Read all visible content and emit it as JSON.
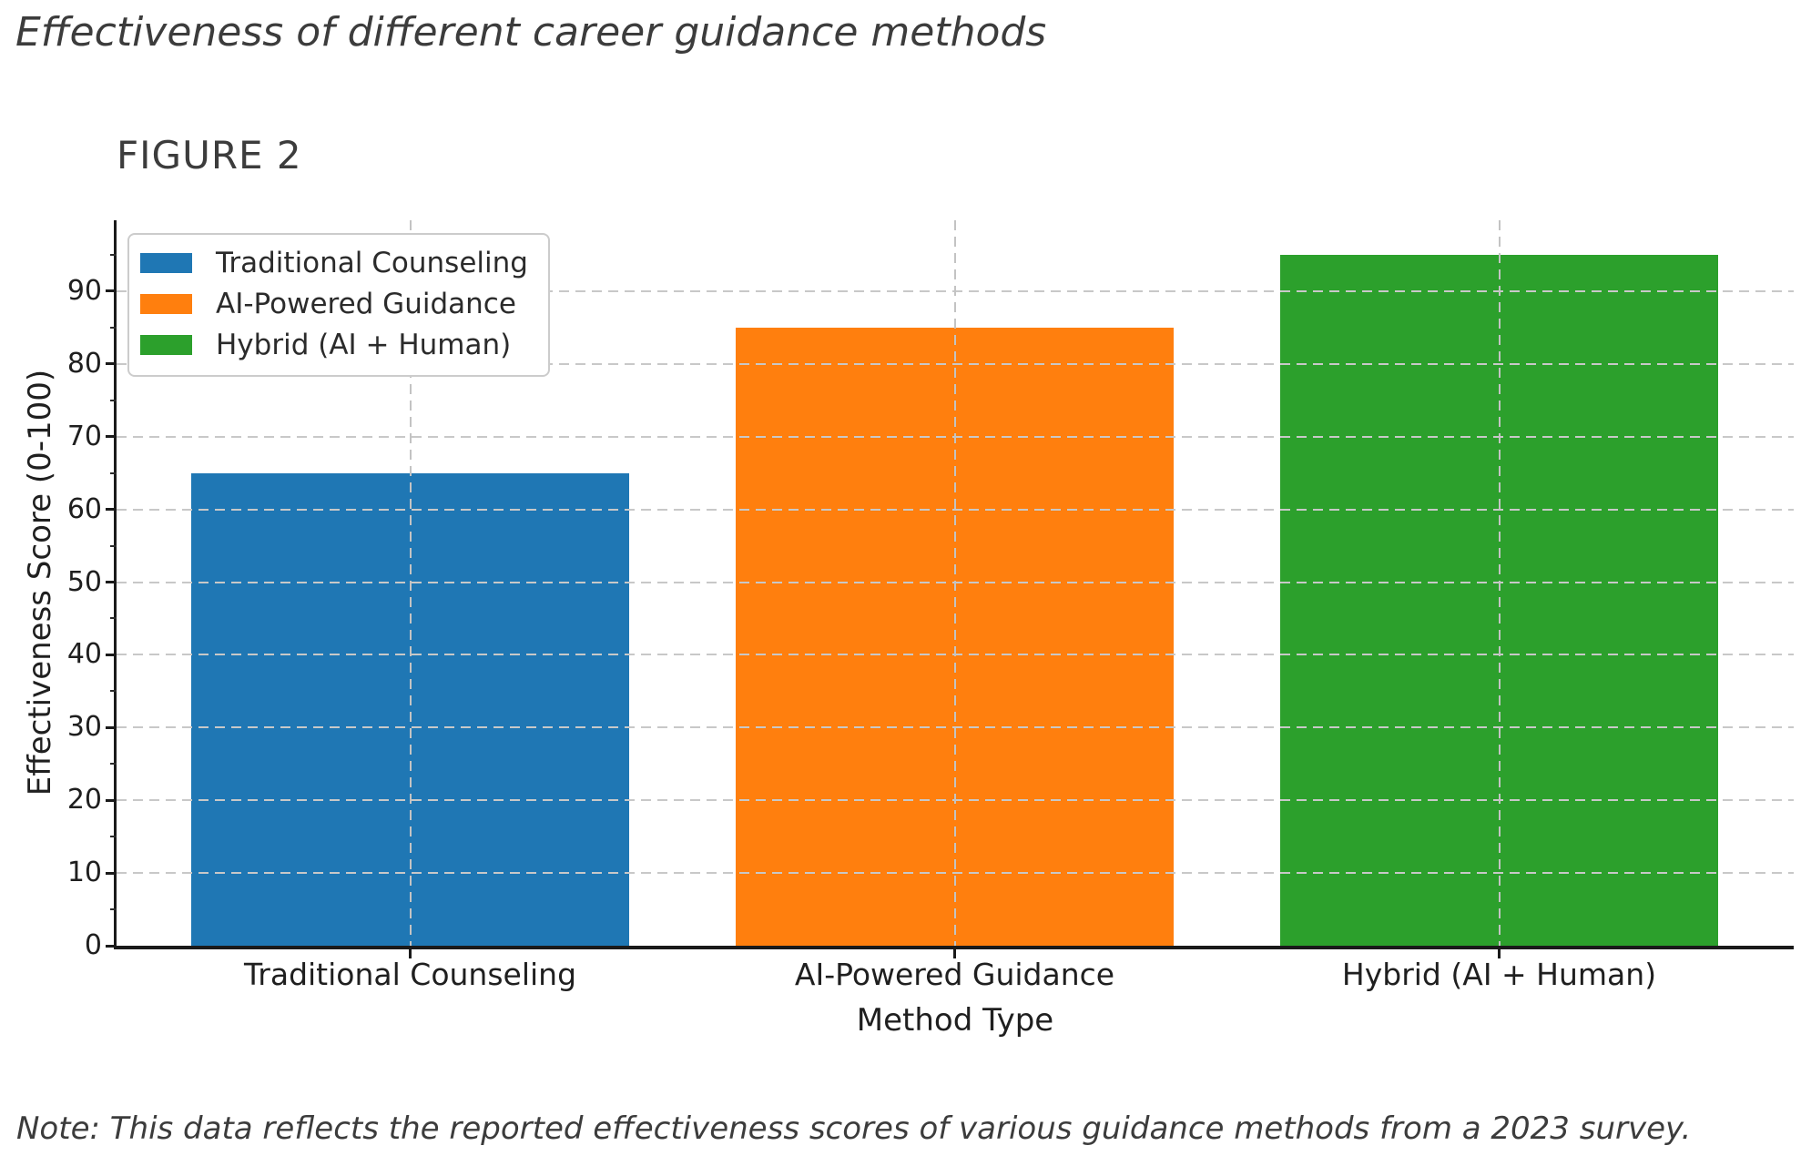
{
  "chart_data": {
    "type": "bar",
    "title": "Effectiveness of different career guidance methods",
    "figure_label": "FIGURE 2",
    "categories": [
      "Traditional Counseling",
      "AI-Powered Guidance",
      "Hybrid (AI + Human)"
    ],
    "values": [
      65,
      85,
      95
    ],
    "bar_colors": [
      "#1f77b4",
      "#ff7f0e",
      "#2ca02c"
    ],
    "xlabel": "Method Type",
    "ylabel": "Effectiveness Score (0-100)",
    "ylim": [
      0,
      99.75
    ],
    "yticks": [
      0,
      10,
      20,
      30,
      40,
      50,
      60,
      70,
      80,
      90
    ],
    "yticks_minor": [
      5,
      15,
      25,
      35,
      45,
      55,
      65,
      75,
      85,
      95
    ],
    "grid": true,
    "grid_color": "#c8c8c8",
    "legend": {
      "position": "upper left",
      "entries": [
        {
          "label": "Traditional Counseling",
          "color": "#1f77b4"
        },
        {
          "label": "AI-Powered Guidance",
          "color": "#ff7f0e"
        },
        {
          "label": "Hybrid (AI + Human)",
          "color": "#2ca02c"
        }
      ]
    },
    "note": "Note: This data reflects the reported effectiveness scores of various guidance methods from a 2023 survey."
  }
}
